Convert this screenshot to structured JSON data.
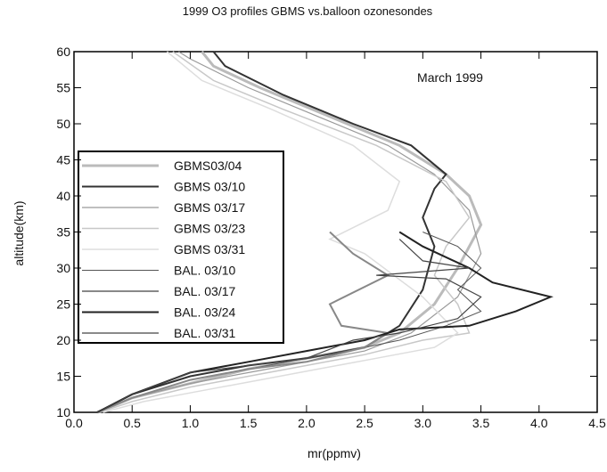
{
  "chart_data": {
    "type": "line",
    "title": "1999 O3 profiles GBMS vs.balloon ozonesondes",
    "x_label": "mr(ppmv)",
    "y_label": "altitude(km)",
    "annotation": "March 1999",
    "xlim": [
      0,
      4.5
    ],
    "ylim": [
      10,
      60
    ],
    "xticks": [
      {
        "value": 0,
        "label": "0.0"
      },
      0.5,
      {
        "value": 1,
        "label": "1.0"
      },
      1.5,
      {
        "value": 2,
        "label": "2.0"
      },
      2.5,
      {
        "value": 3,
        "label": "3.0"
      },
      3.5,
      {
        "value": 4,
        "label": "4.0"
      },
      4.5
    ],
    "yticks": [
      10,
      15,
      20,
      25,
      30,
      35,
      40,
      45,
      50,
      55,
      60
    ],
    "series": [
      {
        "name": "GBMS03/04",
        "color": "#bbbbbb",
        "width": 3,
        "x": [
          0.2,
          0.5,
          1.0,
          1.5,
          2.0,
          2.5,
          2.8,
          3.1,
          3.3,
          3.5,
          3.4,
          3.2,
          2.8,
          2.2,
          1.6,
          1.2,
          1.1
        ],
        "values": [
          10,
          12,
          14,
          16,
          17.5,
          19,
          21,
          25,
          30,
          36,
          40,
          43,
          47,
          51,
          55,
          58,
          60
        ]
      },
      {
        "name": "GBMS 03/10",
        "color": "#333333",
        "width": 2,
        "x": [
          0.2,
          0.5,
          1.0,
          1.5,
          2.0,
          2.5,
          2.8,
          3.0,
          3.1,
          3.0,
          3.1,
          3.2,
          2.9,
          2.4,
          1.8,
          1.3,
          1.2
        ],
        "values": [
          10,
          12.5,
          15,
          16.5,
          17.5,
          19,
          22,
          27,
          33,
          37,
          41,
          43,
          47,
          50,
          54,
          58,
          60
        ]
      },
      {
        "name": "GBMS 03/17",
        "color": "#999999",
        "width": 1.2,
        "x": [
          0.22,
          0.5,
          1.0,
          1.5,
          2.0,
          2.5,
          2.9,
          3.3,
          3.5,
          3.4,
          3.1,
          2.7,
          2.1,
          1.5,
          1.0,
          0.9
        ],
        "values": [
          10,
          12,
          14,
          15.5,
          17,
          18.5,
          21,
          26,
          32,
          38,
          43,
          47,
          51,
          55,
          59,
          60
        ]
      },
      {
        "name": "GBMS 03/23",
        "color": "#c8c8c8",
        "width": 1.5,
        "x": [
          0.22,
          0.5,
          1.0,
          1.5,
          2.0,
          2.5,
          3.0,
          3.4,
          3.3,
          3.1,
          3.2,
          3.4,
          3.2,
          2.6,
          1.8,
          1.2,
          0.85
        ],
        "values": [
          10,
          11.5,
          13.5,
          15,
          16.5,
          18,
          20,
          21,
          25,
          29,
          33,
          37,
          42,
          47,
          52,
          56,
          60
        ]
      },
      {
        "name": "GBMS 03/31",
        "color": "#dddddd",
        "width": 1.5,
        "x": [
          0.25,
          0.6,
          1.1,
          1.6,
          2.1,
          2.6,
          3.1,
          3.3,
          3.0,
          2.5,
          2.2,
          2.7,
          2.8,
          2.4,
          1.7,
          1.1,
          0.8
        ],
        "values": [
          10,
          11.5,
          13,
          14.5,
          16,
          17.5,
          19,
          21,
          26,
          32,
          34,
          38,
          42,
          47,
          52,
          56,
          60
        ]
      },
      {
        "name": "BAL. 03/10",
        "color": "#555555",
        "width": 1,
        "x": [
          0.2,
          0.5,
          1.0,
          1.5,
          2.0,
          2.5,
          2.8,
          3.2,
          3.5,
          3.3,
          3.5,
          3.3,
          3.0
        ],
        "values": [
          10,
          12,
          14.5,
          16,
          17.5,
          19,
          20,
          22,
          24,
          27,
          30,
          33,
          35
        ]
      },
      {
        "name": "BAL. 03/17",
        "color": "#888888",
        "width": 2,
        "x": [
          0.2,
          0.5,
          1.0,
          1.5,
          2.0,
          2.5,
          2.7,
          2.3,
          2.2,
          2.7,
          2.4,
          2.2
        ],
        "values": [
          10,
          12,
          14.5,
          16,
          17,
          19,
          21,
          22,
          25,
          29,
          32,
          35
        ]
      },
      {
        "name": "BAL. 03/24",
        "color": "#222222",
        "width": 2,
        "x": [
          0.2,
          0.5,
          1.0,
          1.5,
          2.0,
          2.5,
          2.8,
          3.4,
          3.8,
          4.1,
          3.6,
          3.4,
          3.0,
          2.8
        ],
        "values": [
          10,
          12.5,
          15.5,
          17,
          18.5,
          20,
          21.5,
          22,
          24,
          26,
          28,
          30,
          33,
          35
        ]
      },
      {
        "name": "BAL. 03/31",
        "color": "#444444",
        "width": 1.2,
        "x": [
          0.2,
          0.5,
          1.0,
          1.5,
          2.0,
          2.4,
          2.8,
          3.3,
          3.5,
          3.2,
          2.6,
          3.4,
          3.0,
          2.8
        ],
        "values": [
          10,
          12.5,
          15.5,
          16.5,
          17.5,
          20,
          21,
          23,
          26,
          28.5,
          29,
          30,
          31,
          34
        ]
      }
    ]
  }
}
